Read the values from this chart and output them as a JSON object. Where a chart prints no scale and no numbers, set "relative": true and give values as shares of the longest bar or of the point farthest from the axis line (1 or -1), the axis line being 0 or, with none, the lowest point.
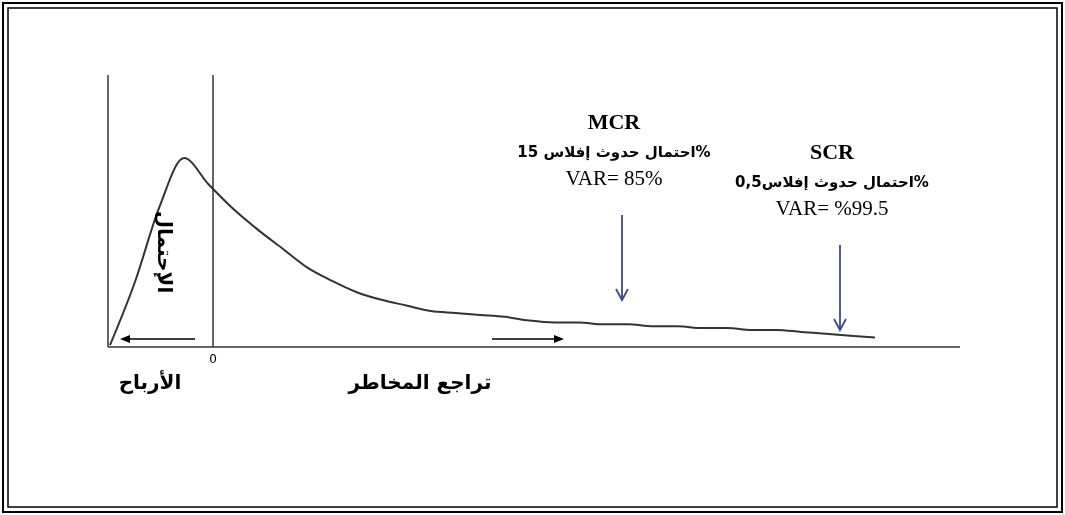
{
  "chart_data": {
    "type": "line",
    "relative": true,
    "ylabel": "الإحتمال",
    "xlabel": "تراجع المخاطر",
    "categories": [
      null,
      null,
      null,
      null,
      null,
      null,
      null,
      null,
      null,
      null,
      null,
      null,
      null,
      null,
      null,
      null,
      null,
      null,
      null,
      null,
      null,
      null,
      null,
      null,
      null,
      null,
      null,
      null,
      null,
      null,
      null,
      null
    ],
    "series": [
      {
        "color": "#333333",
        "values": [
          0.01,
          0.34,
          0.74,
          1.0,
          0.86,
          0.73,
          0.62,
          0.52,
          0.42,
          0.35,
          0.29,
          0.25,
          0.22,
          0.19,
          0.18,
          0.17,
          0.16,
          0.14,
          0.13,
          0.13,
          0.12,
          0.12,
          0.11,
          0.11,
          0.1,
          0.1,
          0.09,
          0.09,
          0.08,
          0.07,
          0.06,
          0.05
        ]
      }
    ],
    "ref_lines": [
      {
        "axis": "x",
        "label": "0",
        "color": "#333333"
      }
    ],
    "annotations": [
      "MCR\nاحتمال حدوث إفلاس 15%\nVAR= 85%",
      "SCR\nاحتمال حدوث إفلاس0,5%\nVAR= %99.5",
      "الأرباح"
    ]
  }
}
